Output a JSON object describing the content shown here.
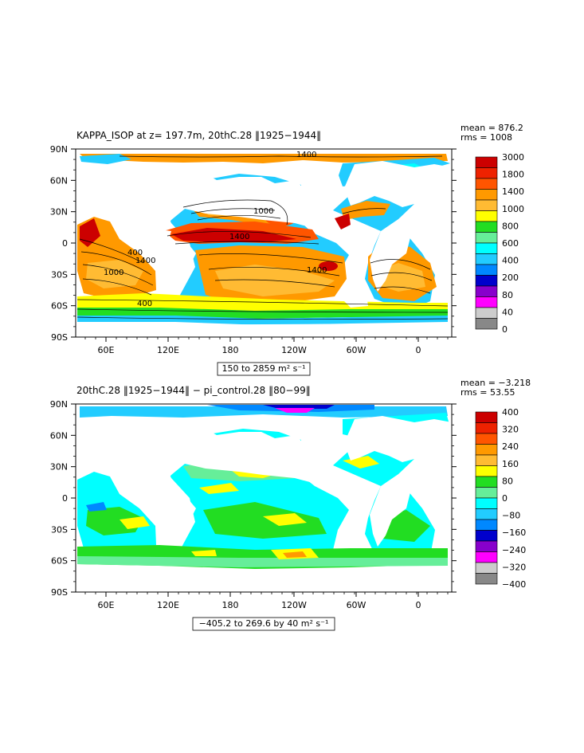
{
  "chart_data": [
    {
      "type": "heatmap",
      "title": "KAPPA_ISOP at z= 197.7m, 20thC.28 ‖1925−1944‖",
      "stats": [
        "mean = 876.2",
        "rms = 1008"
      ],
      "range_label": "150 to 2859 m² s⁻¹",
      "ylim": [
        -90,
        90
      ],
      "y_ticks": [
        "90N",
        "60N",
        "30N",
        "0",
        "30S",
        "60S",
        "90S"
      ],
      "x_ticks": [
        "60E",
        "120E",
        "180",
        "120W",
        "60W",
        "0"
      ],
      "colorbar_labels": [
        "3000",
        "1800",
        "1400",
        "1000",
        "800",
        "600",
        "400",
        "200",
        "80",
        "40",
        "0"
      ],
      "colorbar_colors": [
        "#cc0000",
        "#ee2200",
        "#ff5500",
        "#ff9900",
        "#ffbb33",
        "#ffff00",
        "#22dd22",
        "#66ee99",
        "#00ffff",
        "#22ccff",
        "#0088ff",
        "#0000cc",
        "#8800cc",
        "#ff00ff",
        "#cccccc",
        "#777777"
      ],
      "contour_labels": [
        "1400",
        "1000",
        "1400",
        "400",
        "1400",
        "1000",
        "1400",
        "400"
      ],
      "grid": false
    },
    {
      "type": "heatmap",
      "title": "20thC.28 ‖1925−1944‖ − pi_control.28 ‖80−99‖",
      "stats": [
        "mean = −3.218",
        "rms = 53.55"
      ],
      "range_label": "−405.2 to 269.6 by 40 m² s⁻¹",
      "ylim": [
        -90,
        90
      ],
      "y_ticks": [
        "90N",
        "60N",
        "30N",
        "0",
        "30S",
        "60S",
        "90S"
      ],
      "x_ticks": [
        "60E",
        "120E",
        "180",
        "120W",
        "60W",
        "0"
      ],
      "colorbar_labels": [
        "400",
        "320",
        "240",
        "160",
        "80",
        "0",
        "−80",
        "−160",
        "−240",
        "−320",
        "−400"
      ],
      "colorbar_colors": [
        "#cc0000",
        "#ee2200",
        "#ff5500",
        "#ff9900",
        "#ffbb33",
        "#ffff00",
        "#22dd22",
        "#66ee99",
        "#00ffff",
        "#22ccff",
        "#0088ff",
        "#0000cc",
        "#8800cc",
        "#ff00ff",
        "#cccccc",
        "#777777"
      ],
      "grid": false
    }
  ]
}
